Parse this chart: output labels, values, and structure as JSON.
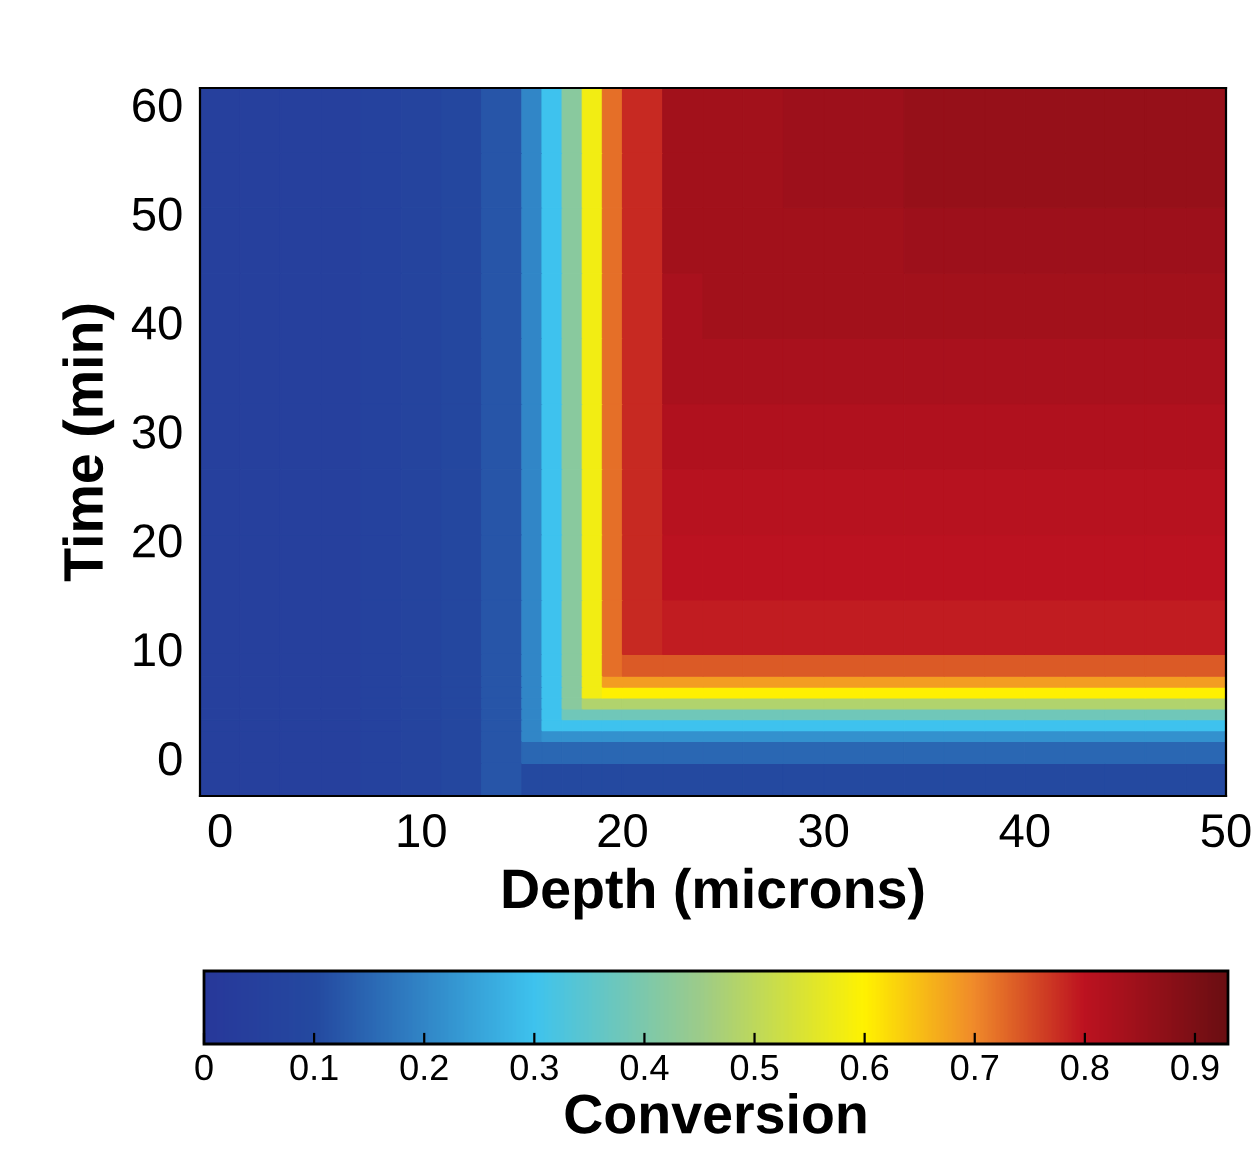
{
  "chart_data": {
    "type": "heatmap",
    "xlabel": "Depth (microns)",
    "ylabel": "Time (min)",
    "clabel": "Conversion",
    "x": [
      0,
      2,
      4,
      6,
      8,
      10,
      12,
      14,
      15.5,
      16.5,
      17.5,
      18.5,
      19.5,
      21,
      23,
      25,
      27,
      29,
      31,
      33,
      35,
      37,
      39,
      41,
      43,
      45,
      47,
      49
    ],
    "y": [
      -2,
      0.5,
      2,
      3,
      4,
      5,
      6,
      7,
      8.5,
      12,
      17.5,
      23.5,
      29.5,
      35.5,
      41.5,
      47.5,
      53,
      58.5
    ],
    "xlim": [
      -1,
      50
    ],
    "ylim": [
      -3.5,
      61.5
    ],
    "xticks": [
      0,
      10,
      20,
      30,
      40,
      50
    ],
    "yticks": [
      0,
      10,
      20,
      30,
      40,
      50,
      60
    ],
    "clim": [
      0,
      0.93
    ],
    "cticks": [
      0,
      0.1,
      0.2,
      0.3,
      0.4,
      0.5,
      0.6,
      0.7,
      0.8,
      0.9
    ],
    "cells": [
      [
        0.05,
        0.05,
        0.05,
        0.05,
        0.06,
        0.07,
        0.09,
        0.12,
        0.1,
        0.1,
        0.1,
        0.1,
        0.1,
        0.1,
        0.1,
        0.1,
        0.1,
        0.1,
        0.1,
        0.1,
        0.1,
        0.1,
        0.1,
        0.1,
        0.1,
        0.1,
        0.1,
        0.1
      ],
      [
        0.05,
        0.05,
        0.05,
        0.05,
        0.06,
        0.07,
        0.09,
        0.12,
        0.15,
        0.15,
        0.15,
        0.15,
        0.15,
        0.15,
        0.15,
        0.15,
        0.15,
        0.15,
        0.15,
        0.15,
        0.15,
        0.15,
        0.15,
        0.15,
        0.15,
        0.15,
        0.15,
        0.15
      ],
      [
        0.05,
        0.05,
        0.05,
        0.05,
        0.06,
        0.07,
        0.09,
        0.12,
        0.2,
        0.22,
        0.22,
        0.22,
        0.22,
        0.22,
        0.22,
        0.22,
        0.22,
        0.22,
        0.22,
        0.22,
        0.22,
        0.22,
        0.22,
        0.22,
        0.22,
        0.22,
        0.22,
        0.22
      ],
      [
        0.05,
        0.05,
        0.05,
        0.05,
        0.06,
        0.07,
        0.09,
        0.12,
        0.2,
        0.3,
        0.3,
        0.3,
        0.3,
        0.3,
        0.3,
        0.3,
        0.3,
        0.3,
        0.3,
        0.3,
        0.3,
        0.3,
        0.3,
        0.3,
        0.3,
        0.3,
        0.3,
        0.3
      ],
      [
        0.05,
        0.05,
        0.05,
        0.05,
        0.06,
        0.07,
        0.09,
        0.12,
        0.2,
        0.3,
        0.38,
        0.38,
        0.38,
        0.38,
        0.38,
        0.38,
        0.38,
        0.38,
        0.38,
        0.38,
        0.38,
        0.38,
        0.38,
        0.38,
        0.38,
        0.38,
        0.38,
        0.38
      ],
      [
        0.05,
        0.05,
        0.05,
        0.05,
        0.06,
        0.07,
        0.09,
        0.12,
        0.2,
        0.3,
        0.42,
        0.48,
        0.48,
        0.48,
        0.48,
        0.48,
        0.48,
        0.48,
        0.48,
        0.48,
        0.48,
        0.48,
        0.48,
        0.48,
        0.48,
        0.48,
        0.48,
        0.48
      ],
      [
        0.05,
        0.05,
        0.05,
        0.05,
        0.06,
        0.07,
        0.09,
        0.12,
        0.2,
        0.3,
        0.42,
        0.58,
        0.6,
        0.6,
        0.6,
        0.6,
        0.6,
        0.6,
        0.6,
        0.6,
        0.6,
        0.6,
        0.6,
        0.6,
        0.6,
        0.6,
        0.6,
        0.6
      ],
      [
        0.05,
        0.05,
        0.05,
        0.05,
        0.06,
        0.07,
        0.09,
        0.12,
        0.2,
        0.3,
        0.42,
        0.58,
        0.68,
        0.68,
        0.68,
        0.68,
        0.68,
        0.68,
        0.68,
        0.68,
        0.68,
        0.68,
        0.68,
        0.68,
        0.68,
        0.68,
        0.68,
        0.68
      ],
      [
        0.05,
        0.05,
        0.05,
        0.05,
        0.06,
        0.07,
        0.09,
        0.12,
        0.2,
        0.3,
        0.42,
        0.58,
        0.72,
        0.74,
        0.74,
        0.74,
        0.74,
        0.74,
        0.74,
        0.74,
        0.74,
        0.74,
        0.74,
        0.74,
        0.74,
        0.74,
        0.74,
        0.74
      ],
      [
        0.05,
        0.05,
        0.05,
        0.05,
        0.06,
        0.07,
        0.09,
        0.12,
        0.2,
        0.3,
        0.42,
        0.58,
        0.72,
        0.78,
        0.79,
        0.79,
        0.79,
        0.79,
        0.79,
        0.79,
        0.79,
        0.79,
        0.79,
        0.79,
        0.79,
        0.79,
        0.79,
        0.79
      ],
      [
        0.05,
        0.05,
        0.05,
        0.05,
        0.06,
        0.07,
        0.09,
        0.12,
        0.2,
        0.3,
        0.42,
        0.58,
        0.72,
        0.78,
        0.8,
        0.8,
        0.8,
        0.8,
        0.8,
        0.8,
        0.8,
        0.8,
        0.8,
        0.8,
        0.8,
        0.8,
        0.8,
        0.8
      ],
      [
        0.05,
        0.05,
        0.05,
        0.05,
        0.06,
        0.07,
        0.09,
        0.12,
        0.2,
        0.3,
        0.42,
        0.58,
        0.72,
        0.78,
        0.81,
        0.81,
        0.81,
        0.81,
        0.81,
        0.81,
        0.81,
        0.81,
        0.81,
        0.81,
        0.81,
        0.81,
        0.81,
        0.81
      ],
      [
        0.05,
        0.05,
        0.05,
        0.05,
        0.06,
        0.07,
        0.09,
        0.12,
        0.2,
        0.3,
        0.42,
        0.58,
        0.72,
        0.78,
        0.82,
        0.82,
        0.82,
        0.82,
        0.82,
        0.82,
        0.82,
        0.82,
        0.82,
        0.82,
        0.82,
        0.82,
        0.82,
        0.82
      ],
      [
        0.05,
        0.05,
        0.05,
        0.05,
        0.06,
        0.07,
        0.09,
        0.12,
        0.2,
        0.3,
        0.42,
        0.58,
        0.72,
        0.78,
        0.83,
        0.83,
        0.83,
        0.83,
        0.83,
        0.83,
        0.83,
        0.83,
        0.83,
        0.83,
        0.83,
        0.83,
        0.83,
        0.83
      ],
      [
        0.05,
        0.05,
        0.05,
        0.05,
        0.06,
        0.07,
        0.09,
        0.12,
        0.2,
        0.3,
        0.42,
        0.58,
        0.72,
        0.78,
        0.83,
        0.84,
        0.84,
        0.84,
        0.84,
        0.84,
        0.84,
        0.84,
        0.84,
        0.84,
        0.84,
        0.84,
        0.84,
        0.84
      ],
      [
        0.05,
        0.05,
        0.05,
        0.05,
        0.06,
        0.07,
        0.09,
        0.12,
        0.2,
        0.3,
        0.42,
        0.58,
        0.72,
        0.78,
        0.84,
        0.84,
        0.84,
        0.84,
        0.84,
        0.84,
        0.85,
        0.85,
        0.85,
        0.85,
        0.85,
        0.85,
        0.85,
        0.85
      ],
      [
        0.05,
        0.05,
        0.05,
        0.05,
        0.06,
        0.07,
        0.09,
        0.12,
        0.2,
        0.3,
        0.42,
        0.58,
        0.72,
        0.78,
        0.84,
        0.84,
        0.84,
        0.85,
        0.85,
        0.85,
        0.86,
        0.86,
        0.86,
        0.86,
        0.86,
        0.86,
        0.86,
        0.86
      ],
      [
        0.05,
        0.05,
        0.05,
        0.05,
        0.06,
        0.07,
        0.09,
        0.12,
        0.2,
        0.3,
        0.42,
        0.58,
        0.72,
        0.78,
        0.84,
        0.84,
        0.84,
        0.85,
        0.85,
        0.85,
        0.86,
        0.86,
        0.86,
        0.86,
        0.86,
        0.86,
        0.86,
        0.86
      ]
    ]
  }
}
